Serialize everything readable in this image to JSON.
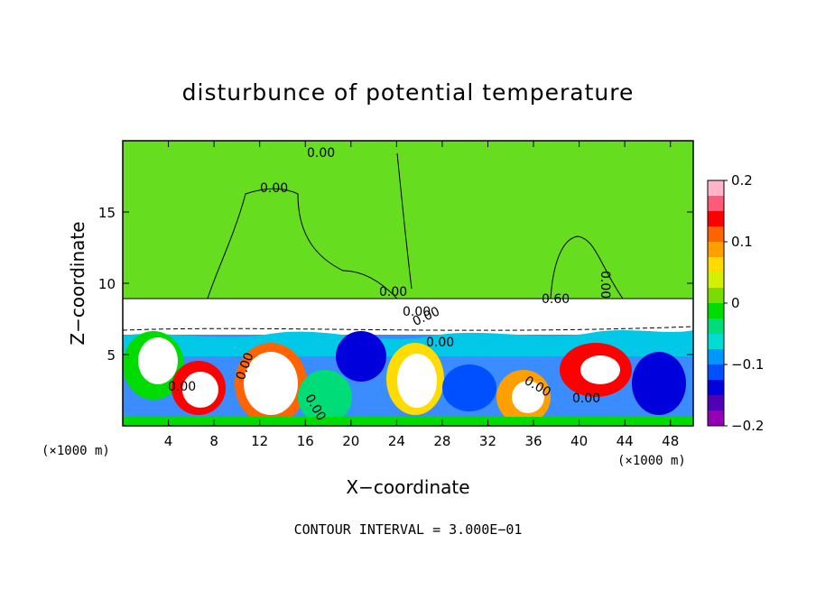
{
  "chart_data": {
    "type": "heatmap",
    "title": "disturbunce of potential temperature",
    "xlabel": "X−coordinate",
    "ylabel": "Z−coordinate",
    "x_unit": "(×1000 m)",
    "xlim": [
      0,
      50
    ],
    "ylim": [
      0,
      20
    ],
    "x_ticks": [
      4,
      8,
      12,
      16,
      20,
      24,
      28,
      32,
      36,
      40,
      44,
      48
    ],
    "y_ticks": [
      5,
      10,
      15
    ],
    "colorbar": {
      "range": [
        -0.2,
        0.2
      ],
      "ticks": [
        0.2,
        0.1,
        0,
        -0.1,
        -0.2
      ],
      "colors": [
        "#ffb4c8",
        "#ff5a78",
        "#ff0000",
        "#ff6400",
        "#ffa000",
        "#ffdc00",
        "#d2f000",
        "#78dc00",
        "#00dc00",
        "#00dc78",
        "#00dcd2",
        "#0096ff",
        "#0050ff",
        "#0000dc",
        "#5000b4",
        "#9600b4"
      ]
    },
    "contour_labels": [
      "0.00",
      "0.00",
      "0.00",
      "0.00",
      "0.60",
      "0.00",
      "0.00",
      "0.00",
      "0.00",
      "0.00",
      "0.00",
      "0.00",
      "0.00"
    ],
    "footer": "CONTOUR INTERVAL = 3.000E−01"
  }
}
